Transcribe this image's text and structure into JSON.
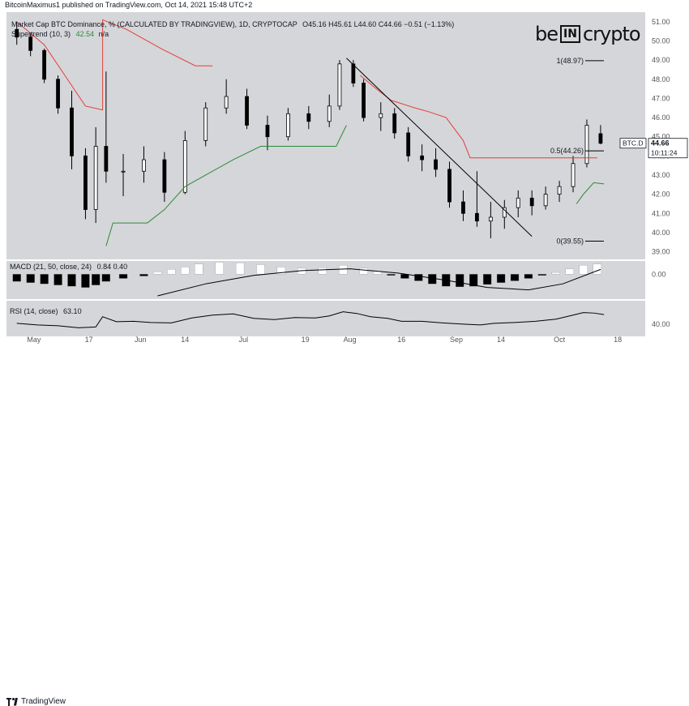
{
  "header": {
    "published": "BitcoinMaximus1 published on TradingView.com, Oct 14, 2021 15:48 UTC+2"
  },
  "legend": {
    "main_title": "Market Cap BTC Dominance, %  (CALCULATED BY TRADINGVIEW), 1D, CRYPTOCAP",
    "ohlc": "O45.16  H45.61  L44.60  C44.66  −0.51 (−1.13%)",
    "supertrend": "Supertrend (10, 3)",
    "supertrend_value": "42.54",
    "supertrend_na": "n/a",
    "macd": "MACD (21, 50, close, 24)",
    "macd_values": "0.84  0.40",
    "rsi": "RSI (14, close)",
    "rsi_value": "63.10"
  },
  "logo": {
    "be": "be",
    "in": "IN",
    "crypto": "crypto"
  },
  "footer": {
    "brand": "TradingView"
  },
  "ticker": {
    "symbol": "BTC.D",
    "price": "44.66",
    "countdown": "10:11:24"
  },
  "colors": {
    "background": "#d5d6d9",
    "candle": "#000000",
    "resistance": "#e0403b",
    "support": "#2a8c3a",
    "histogram_light": "#ffffff",
    "histogram_dark": "#000000"
  },
  "chart_data": [
    {
      "type": "candlestick",
      "title": "Market Cap BTC Dominance, %",
      "y_ticks": [
        "51.00",
        "50.00",
        "49.00",
        "48.00",
        "47.00",
        "46.00",
        "45.00",
        "44.00",
        "43.00",
        "42.00",
        "41.00",
        "40.00",
        "39.00"
      ],
      "ylim": [
        38.6,
        51.5
      ],
      "x_ticks": [
        "May",
        "17",
        "Jun",
        "14",
        "Jul",
        "19",
        "Aug",
        "16",
        "Sep",
        "14",
        "Oct",
        "18"
      ],
      "last_close": 44.66,
      "candles": [
        {
          "date": "2021-04-26",
          "o": 50.6,
          "h": 51.0,
          "l": 49.8,
          "c": 50.2
        },
        {
          "date": "2021-04-30",
          "o": 50.2,
          "h": 50.4,
          "l": 49.2,
          "c": 49.5
        },
        {
          "date": "2021-05-04",
          "o": 49.5,
          "h": 49.6,
          "l": 47.8,
          "c": 48.0
        },
        {
          "date": "2021-05-08",
          "o": 48.0,
          "h": 48.2,
          "l": 46.2,
          "c": 46.5
        },
        {
          "date": "2021-05-12",
          "o": 46.5,
          "h": 47.4,
          "l": 43.3,
          "c": 44.0
        },
        {
          "date": "2021-05-16",
          "o": 44.0,
          "h": 44.4,
          "l": 40.7,
          "c": 41.2
        },
        {
          "date": "2021-05-19",
          "o": 41.2,
          "h": 45.5,
          "l": 40.5,
          "c": 44.5
        },
        {
          "date": "2021-05-22",
          "o": 44.5,
          "h": 48.4,
          "l": 42.6,
          "c": 43.2
        },
        {
          "date": "2021-05-27",
          "o": 43.2,
          "h": 44.1,
          "l": 41.9,
          "c": 43.2
        },
        {
          "date": "2021-06-02",
          "o": 43.2,
          "h": 44.5,
          "l": 42.6,
          "c": 43.8
        },
        {
          "date": "2021-06-08",
          "o": 43.8,
          "h": 44.2,
          "l": 41.6,
          "c": 42.1
        },
        {
          "date": "2021-06-14",
          "o": 42.1,
          "h": 45.3,
          "l": 42.0,
          "c": 44.8
        },
        {
          "date": "2021-06-20",
          "o": 44.8,
          "h": 46.8,
          "l": 44.5,
          "c": 46.5
        },
        {
          "date": "2021-06-26",
          "o": 46.5,
          "h": 48.0,
          "l": 46.2,
          "c": 47.1
        },
        {
          "date": "2021-07-02",
          "o": 47.1,
          "h": 47.5,
          "l": 45.4,
          "c": 45.6
        },
        {
          "date": "2021-07-08",
          "o": 45.6,
          "h": 46.1,
          "l": 44.3,
          "c": 45.0
        },
        {
          "date": "2021-07-14",
          "o": 45.0,
          "h": 46.5,
          "l": 44.8,
          "c": 46.2
        },
        {
          "date": "2021-07-20",
          "o": 46.2,
          "h": 46.6,
          "l": 45.4,
          "c": 45.8
        },
        {
          "date": "2021-07-26",
          "o": 45.8,
          "h": 47.2,
          "l": 45.5,
          "c": 46.6
        },
        {
          "date": "2021-07-29",
          "o": 46.6,
          "h": 49.0,
          "l": 46.4,
          "c": 48.8
        },
        {
          "date": "2021-08-02",
          "o": 48.8,
          "h": 49.0,
          "l": 47.6,
          "c": 47.8
        },
        {
          "date": "2021-08-05",
          "o": 47.8,
          "h": 48.0,
          "l": 45.8,
          "c": 46.0
        },
        {
          "date": "2021-08-10",
          "o": 46.0,
          "h": 46.8,
          "l": 45.3,
          "c": 46.2
        },
        {
          "date": "2021-08-14",
          "o": 46.2,
          "h": 46.5,
          "l": 44.9,
          "c": 45.2
        },
        {
          "date": "2021-08-18",
          "o": 45.2,
          "h": 45.5,
          "l": 43.7,
          "c": 44.0
        },
        {
          "date": "2021-08-22",
          "o": 44.0,
          "h": 44.6,
          "l": 43.2,
          "c": 43.8
        },
        {
          "date": "2021-08-26",
          "o": 43.8,
          "h": 44.4,
          "l": 42.9,
          "c": 43.3
        },
        {
          "date": "2021-08-30",
          "o": 43.3,
          "h": 43.7,
          "l": 41.3,
          "c": 41.6
        },
        {
          "date": "2021-09-03",
          "o": 41.6,
          "h": 42.2,
          "l": 40.6,
          "c": 41.0
        },
        {
          "date": "2021-09-07",
          "o": 41.0,
          "h": 43.2,
          "l": 40.3,
          "c": 40.6
        },
        {
          "date": "2021-09-11",
          "o": 40.6,
          "h": 41.6,
          "l": 39.7,
          "c": 40.8
        },
        {
          "date": "2021-09-15",
          "o": 40.8,
          "h": 41.7,
          "l": 40.2,
          "c": 41.3
        },
        {
          "date": "2021-09-19",
          "o": 41.3,
          "h": 42.2,
          "l": 40.8,
          "c": 41.8
        },
        {
          "date": "2021-09-23",
          "o": 41.8,
          "h": 42.2,
          "l": 40.9,
          "c": 41.4
        },
        {
          "date": "2021-09-27",
          "o": 41.4,
          "h": 42.4,
          "l": 41.2,
          "c": 42.0
        },
        {
          "date": "2021-10-01",
          "o": 42.0,
          "h": 42.7,
          "l": 41.6,
          "c": 42.4
        },
        {
          "date": "2021-10-05",
          "o": 42.4,
          "h": 44.0,
          "l": 42.1,
          "c": 43.6
        },
        {
          "date": "2021-10-09",
          "o": 43.6,
          "h": 45.9,
          "l": 43.4,
          "c": 45.6
        },
        {
          "date": "2021-10-13",
          "o": 45.16,
          "h": 45.61,
          "l": 44.6,
          "c": 44.66
        }
      ],
      "supertrend": {
        "name": "Supertrend (10, 3)",
        "resistance": [
          [
            "2021-04-26",
            51.0
          ],
          [
            "2021-05-04",
            49.8
          ],
          [
            "2021-05-10",
            48.2
          ],
          [
            "2021-05-16",
            46.6
          ],
          [
            "2021-05-21",
            46.4
          ],
          [
            "2021-05-21",
            51.1
          ],
          [
            "2021-05-28",
            50.6
          ],
          [
            "2021-06-07",
            49.6
          ],
          [
            "2021-06-17",
            48.7
          ],
          [
            "2021-06-22",
            48.7
          ],
          [
            "2021-06-22",
            null
          ],
          [
            "2021-08-04",
            48.2
          ],
          [
            "2021-08-08",
            47.6
          ],
          [
            "2021-08-13",
            46.9
          ],
          [
            "2021-08-20",
            46.5
          ],
          [
            "2021-08-24",
            46.3
          ],
          [
            "2021-08-29",
            46.0
          ],
          [
            "2021-09-03",
            44.8
          ],
          [
            "2021-09-05",
            43.9
          ],
          [
            "2021-09-25",
            43.9
          ],
          [
            "2021-10-12",
            43.9
          ]
        ],
        "support": [
          [
            "2021-05-22",
            39.3
          ],
          [
            "2021-05-24",
            40.5
          ],
          [
            "2021-06-03",
            40.5
          ],
          [
            "2021-06-08",
            41.2
          ],
          [
            "2021-06-14",
            42.4
          ],
          [
            "2021-06-20",
            43.0
          ],
          [
            "2021-06-28",
            43.8
          ],
          [
            "2021-07-06",
            44.5
          ],
          [
            "2021-07-28",
            44.5
          ],
          [
            "2021-07-31",
            45.6
          ],
          [
            "2021-08-03",
            null
          ],
          [
            "2021-10-06",
            41.5
          ],
          [
            "2021-10-08",
            42.0
          ],
          [
            "2021-10-11",
            42.6
          ],
          [
            "2021-10-14",
            42.54
          ]
        ]
      },
      "trendline": [
        [
          "2021-07-31",
          49.1
        ],
        [
          "2021-09-23",
          39.8
        ]
      ],
      "fib_levels": [
        {
          "label": "1(48.97)",
          "value": 48.97
        },
        {
          "label": "0.5(44.26)",
          "value": 44.26
        },
        {
          "label": "0(39.55)",
          "value": 39.55
        }
      ]
    },
    {
      "type": "bar",
      "title": "MACD (21, 50, close, 24)",
      "y_ticks": [
        "0.00"
      ],
      "ylim": [
        -2.0,
        1.1
      ],
      "histogram": [
        [
          "2021-04-26",
          -0.6
        ],
        [
          "2021-04-30",
          -0.7
        ],
        [
          "2021-05-04",
          -0.8
        ],
        [
          "2021-05-08",
          -0.9
        ],
        [
          "2021-05-12",
          -1.0
        ],
        [
          "2021-05-16",
          -1.1
        ],
        [
          "2021-05-19",
          -0.9
        ],
        [
          "2021-05-22",
          -0.6
        ],
        [
          "2021-05-27",
          -0.35
        ],
        [
          "2021-06-02",
          -0.15
        ],
        [
          "2021-06-06",
          0.2
        ],
        [
          "2021-06-10",
          0.4
        ],
        [
          "2021-06-14",
          0.6
        ],
        [
          "2021-06-18",
          0.85
        ],
        [
          "2021-06-24",
          1.0
        ],
        [
          "2021-06-30",
          0.95
        ],
        [
          "2021-07-06",
          0.8
        ],
        [
          "2021-07-12",
          0.6
        ],
        [
          "2021-07-18",
          0.5
        ],
        [
          "2021-07-24",
          0.55
        ],
        [
          "2021-07-30",
          0.75
        ],
        [
          "2021-08-05",
          0.5
        ],
        [
          "2021-08-09",
          0.25
        ],
        [
          "2021-08-13",
          -0.1
        ],
        [
          "2021-08-17",
          -0.35
        ],
        [
          "2021-08-21",
          -0.55
        ],
        [
          "2021-08-25",
          -0.8
        ],
        [
          "2021-08-29",
          -1.0
        ],
        [
          "2021-09-02",
          -1.05
        ],
        [
          "2021-09-06",
          -1.0
        ],
        [
          "2021-09-10",
          -0.85
        ],
        [
          "2021-09-14",
          -0.7
        ],
        [
          "2021-09-18",
          -0.55
        ],
        [
          "2021-09-22",
          -0.35
        ],
        [
          "2021-09-26",
          -0.1
        ],
        [
          "2021-09-30",
          0.15
        ],
        [
          "2021-10-04",
          0.45
        ],
        [
          "2021-10-08",
          0.75
        ],
        [
          "2021-10-12",
          0.84
        ]
      ],
      "signal": [
        [
          "2021-06-06",
          -1.8
        ],
        [
          "2021-06-20",
          -0.8
        ],
        [
          "2021-07-04",
          -0.1
        ],
        [
          "2021-07-18",
          0.3
        ],
        [
          "2021-08-01",
          0.45
        ],
        [
          "2021-08-15",
          0.1
        ],
        [
          "2021-08-29",
          -0.5
        ],
        [
          "2021-09-10",
          -1.1
        ],
        [
          "2021-09-22",
          -1.3
        ],
        [
          "2021-10-02",
          -0.8
        ],
        [
          "2021-10-13",
          0.4
        ]
      ]
    },
    {
      "type": "line",
      "title": "RSI (14, close)",
      "y_ticks": [
        "40.00"
      ],
      "ylim": [
        20,
        95
      ],
      "series": [
        {
          "name": "RSI (14, close)",
          "points": [
            [
              "2021-04-26",
              42
            ],
            [
              "2021-05-02",
              38
            ],
            [
              "2021-05-08",
              36
            ],
            [
              "2021-05-14",
              31
            ],
            [
              "2021-05-19",
              33
            ],
            [
              "2021-05-21",
              58
            ],
            [
              "2021-05-25",
              46
            ],
            [
              "2021-05-30",
              47
            ],
            [
              "2021-06-04",
              44
            ],
            [
              "2021-06-10",
              43
            ],
            [
              "2021-06-16",
              55
            ],
            [
              "2021-06-22",
              62
            ],
            [
              "2021-06-28",
              65
            ],
            [
              "2021-07-04",
              54
            ],
            [
              "2021-07-10",
              51
            ],
            [
              "2021-07-16",
              56
            ],
            [
              "2021-07-22",
              55
            ],
            [
              "2021-07-26",
              60
            ],
            [
              "2021-07-30",
              70
            ],
            [
              "2021-08-03",
              66
            ],
            [
              "2021-08-07",
              58
            ],
            [
              "2021-08-12",
              54
            ],
            [
              "2021-08-16",
              47
            ],
            [
              "2021-08-22",
              47
            ],
            [
              "2021-08-28",
              43
            ],
            [
              "2021-09-03",
              40
            ],
            [
              "2021-09-08",
              38
            ],
            [
              "2021-09-12",
              42
            ],
            [
              "2021-09-18",
              44
            ],
            [
              "2021-09-24",
              47
            ],
            [
              "2021-09-30",
              52
            ],
            [
              "2021-10-04",
              60
            ],
            [
              "2021-10-08",
              68
            ],
            [
              "2021-10-11",
              67
            ],
            [
              "2021-10-14",
              63.1
            ]
          ]
        }
      ]
    }
  ]
}
